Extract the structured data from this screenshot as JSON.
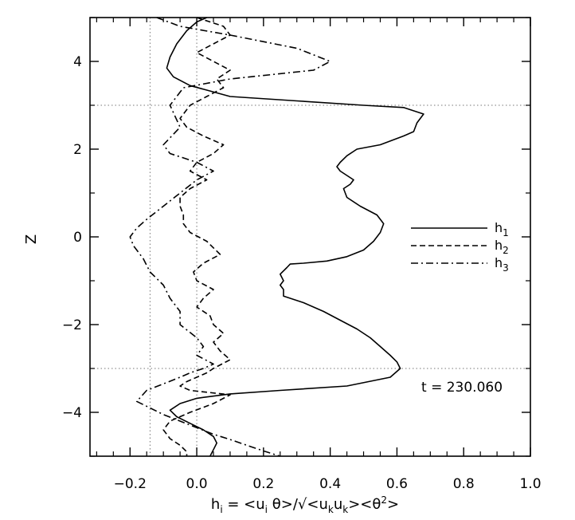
{
  "chart_data": {
    "type": "line",
    "title": "",
    "xlabel": "h_i = <u_i θ>/√<u_k u_k><θ^2>",
    "xlabel_parts": {
      "h": "h",
      "h_sub": "i",
      "mid1": " = <u",
      "u_sub": "i",
      "mid2": " θ>/√<u",
      "uk1": "k",
      "mid3": "u",
      "uk2": "k",
      "mid4": "><θ",
      "sup": "2",
      "end": ">"
    },
    "ylabel": "Z",
    "xlim": [
      -0.32,
      1.0
    ],
    "ylim": [
      -5,
      5
    ],
    "xticks": [
      -0.2,
      0.0,
      0.2,
      0.4,
      0.6,
      0.8,
      1.0
    ],
    "xtick_labels": [
      "−0.2",
      "0.0",
      "0.2",
      "0.4",
      "0.6",
      "0.8",
      "1.0"
    ],
    "yticks": [
      -4,
      -2,
      0,
      2,
      4
    ],
    "ytick_labels": [
      "−4",
      "−2",
      "0",
      "2",
      "4"
    ],
    "reference_lines": {
      "vertical": [
        -0.14,
        0.0
      ],
      "horizontal": [
        3,
        -3
      ]
    },
    "annotation": "t = 230.060",
    "legend_position": "right",
    "series": [
      {
        "name": "h",
        "name_sub": "1",
        "style": "solid",
        "x": [
          0.03,
          0.0,
          -0.03,
          -0.06,
          -0.08,
          -0.09,
          -0.07,
          -0.02,
          0.1,
          0.3,
          0.5,
          0.62,
          0.68,
          0.66,
          0.65,
          0.62,
          0.55,
          0.48,
          0.45,
          0.43,
          0.42,
          0.43,
          0.45,
          0.47,
          0.46,
          0.44,
          0.45,
          0.49,
          0.54,
          0.56,
          0.55,
          0.53,
          0.5,
          0.45,
          0.39,
          0.32,
          0.28,
          0.27,
          0.25,
          0.26,
          0.25,
          0.26,
          0.26,
          0.32,
          0.38,
          0.43,
          0.48,
          0.52,
          0.55,
          0.58,
          0.6,
          0.61,
          0.58,
          0.45,
          0.25,
          0.1,
          0.0,
          -0.05,
          -0.08,
          -0.06,
          -0.02,
          0.02,
          0.05,
          0.06,
          0.05,
          0.04
        ],
        "y": [
          5.0,
          4.9,
          4.7,
          4.4,
          4.1,
          3.85,
          3.65,
          3.45,
          3.2,
          3.1,
          3.0,
          2.95,
          2.8,
          2.6,
          2.4,
          2.3,
          2.1,
          2.0,
          1.85,
          1.7,
          1.6,
          1.5,
          1.4,
          1.3,
          1.2,
          1.1,
          0.9,
          0.7,
          0.5,
          0.3,
          0.1,
          -0.1,
          -0.3,
          -0.45,
          -0.55,
          -0.6,
          -0.62,
          -0.7,
          -0.85,
          -1.0,
          -1.1,
          -1.2,
          -1.35,
          -1.5,
          -1.7,
          -1.9,
          -2.1,
          -2.3,
          -2.5,
          -2.7,
          -2.85,
          -3.0,
          -3.2,
          -3.4,
          -3.5,
          -3.58,
          -3.68,
          -3.8,
          -3.95,
          -4.1,
          -4.25,
          -4.4,
          -4.55,
          -4.7,
          -4.85,
          -5.0
        ]
      },
      {
        "name": "h",
        "name_sub": "2",
        "style": "dashed",
        "x": [
          0.0,
          0.08,
          0.1,
          0.05,
          0.0,
          0.05,
          0.1,
          0.06,
          0.08,
          0.03,
          -0.02,
          -0.05,
          -0.03,
          0.02,
          0.08,
          0.05,
          0.0,
          -0.02,
          0.03,
          -0.02,
          -0.05,
          -0.05,
          -0.04,
          -0.04,
          -0.02,
          0.03,
          0.07,
          0.02,
          -0.01,
          0.0,
          0.05,
          0.02,
          0.0,
          0.04,
          0.05,
          0.08,
          0.05,
          0.07,
          0.1,
          0.05,
          0.03,
          0.0,
          -0.03,
          -0.05,
          -0.02,
          0.1,
          0.05,
          -0.02,
          -0.08,
          -0.1,
          -0.08,
          -0.05,
          -0.03,
          -0.03
        ],
        "y": [
          5.0,
          4.8,
          4.6,
          4.4,
          4.2,
          4.0,
          3.8,
          3.6,
          3.4,
          3.2,
          3.0,
          2.7,
          2.5,
          2.3,
          2.1,
          1.9,
          1.7,
          1.5,
          1.3,
          1.1,
          0.9,
          0.7,
          0.5,
          0.3,
          0.1,
          -0.1,
          -0.4,
          -0.6,
          -0.8,
          -1.0,
          -1.2,
          -1.4,
          -1.6,
          -1.8,
          -2.0,
          -2.2,
          -2.4,
          -2.6,
          -2.8,
          -3.0,
          -3.1,
          -3.2,
          -3.3,
          -3.4,
          -3.5,
          -3.6,
          -3.8,
          -4.0,
          -4.2,
          -4.4,
          -4.6,
          -4.75,
          -4.9,
          -5.0
        ]
      },
      {
        "name": "h",
        "name_sub": "3",
        "style": "dashdot",
        "x": [
          -0.12,
          -0.05,
          0.1,
          0.3,
          0.4,
          0.35,
          0.1,
          -0.04,
          -0.08,
          -0.05,
          -0.1,
          -0.08,
          0.0,
          0.05,
          0.0,
          -0.05,
          -0.1,
          -0.15,
          -0.18,
          -0.2,
          -0.19,
          -0.16,
          -0.14,
          -0.1,
          -0.08,
          -0.05,
          -0.05,
          0.0,
          0.02,
          0.0,
          0.05,
          0.02,
          -0.02,
          -0.05,
          -0.1,
          -0.15,
          -0.18,
          -0.14,
          -0.1,
          -0.05,
          0.0,
          0.05,
          0.1,
          0.15,
          0.2,
          0.25
        ],
        "y": [
          5.0,
          4.8,
          4.6,
          4.3,
          4.0,
          3.8,
          3.6,
          3.4,
          3.0,
          2.5,
          2.1,
          1.9,
          1.7,
          1.5,
          1.3,
          1.0,
          0.7,
          0.4,
          0.2,
          0.0,
          -0.2,
          -0.5,
          -0.8,
          -1.1,
          -1.4,
          -1.7,
          -2.0,
          -2.3,
          -2.5,
          -2.7,
          -2.9,
          -3.0,
          -3.1,
          -3.2,
          -3.35,
          -3.5,
          -3.75,
          -3.9,
          -4.05,
          -4.2,
          -4.35,
          -4.5,
          -4.62,
          -4.75,
          -4.88,
          -5.0
        ]
      }
    ]
  }
}
